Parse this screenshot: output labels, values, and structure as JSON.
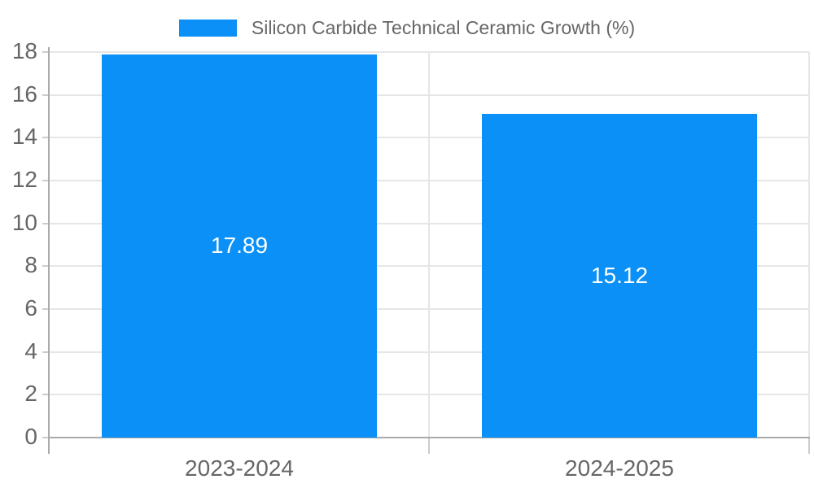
{
  "legend": {
    "label": "Silicon Carbide Technical Ceramic Growth (%)"
  },
  "chart_data": {
    "type": "bar",
    "title": "",
    "xlabel": "",
    "ylabel": "",
    "categories": [
      "2023-2024",
      "2024-2025"
    ],
    "series": [
      {
        "name": "Silicon Carbide Technical Ceramic Growth (%)",
        "values": [
          17.89,
          15.12
        ]
      }
    ],
    "bar_value_labels": [
      "17.89",
      "15.12"
    ],
    "ylim": [
      0,
      18
    ],
    "ytick_step": 2,
    "ytick_labels": [
      "0",
      "2",
      "4",
      "6",
      "8",
      "10",
      "12",
      "14",
      "16",
      "18"
    ],
    "grid": true,
    "legend_position": "top-center",
    "colors": {
      "bar": "#0a90f6",
      "grid": "#e6e6e6",
      "axis": "#aaaaaa",
      "tick": "#cccccc",
      "tick_text": "#666666",
      "value_text": "#ffffff"
    }
  }
}
